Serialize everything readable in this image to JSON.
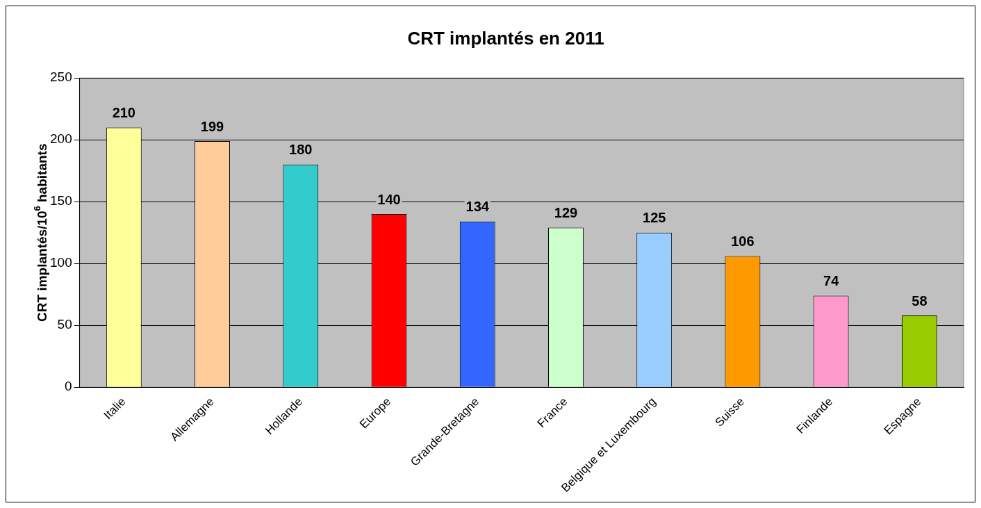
{
  "chart_data": {
    "type": "bar",
    "title": "CRT implantés en 2011",
    "ylabel": "CRT implantés/10$^{6}$ habitants",
    "categories": [
      "Italie",
      "Allemagne",
      "Hollande",
      "Europe",
      "Grande-Bretagne",
      "France",
      "Belgique et Luxembourg",
      "Suisse",
      "Finlande",
      "Espagne"
    ],
    "values": [
      210,
      199,
      180,
      140,
      134,
      129,
      125,
      106,
      74,
      58
    ],
    "colors": [
      "#ffff99",
      "#ffcc99",
      "#33cccc",
      "#ff0000",
      "#3366ff",
      "#ccffcc",
      "#99ccff",
      "#ff9900",
      "#ff99cc",
      "#99cc00"
    ],
    "ylim": [
      0,
      250
    ],
    "yticks": [
      0,
      50,
      100,
      150,
      200,
      250
    ],
    "grid": "y",
    "legend": false,
    "data_labels": true
  }
}
